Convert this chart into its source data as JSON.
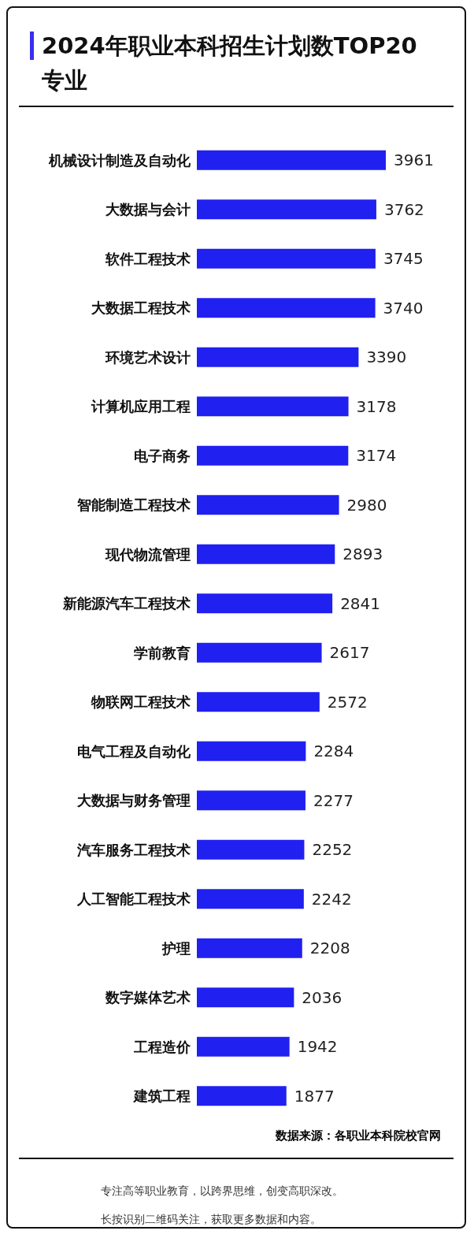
{
  "chart_data": {
    "type": "bar",
    "orientation": "horizontal",
    "title": "2024年职业本科招生计划数TOP20专业",
    "categories": [
      "机械设计制造及自动化",
      "大数据与会计",
      "软件工程技术",
      "大数据工程技术",
      "环境艺术设计",
      "计算机应用工程",
      "电子商务",
      "智能制造工程技术",
      "现代物流管理",
      "新能源汽车工程技术",
      "学前教育",
      "物联网工程技术",
      "电气工程及自动化",
      "大数据与财务管理",
      "汽车服务工程技术",
      "人工智能工程技术",
      "护理",
      "数字媒体艺术",
      "工程造价",
      "建筑工程"
    ],
    "values": [
      3961,
      3762,
      3745,
      3740,
      3390,
      3178,
      3174,
      2980,
      2893,
      2841,
      2617,
      2572,
      2284,
      2277,
      2252,
      2242,
      2208,
      2036,
      1942,
      1877
    ],
    "color": "#2020f0",
    "data_labels": true,
    "annotations": [
      "数据来源：各职业本科院校官网",
      "专注高等职业教育，以跨界思维，创变高职深改。",
      "长按识别二维码关注，获取更多数据和内容。"
    ]
  }
}
